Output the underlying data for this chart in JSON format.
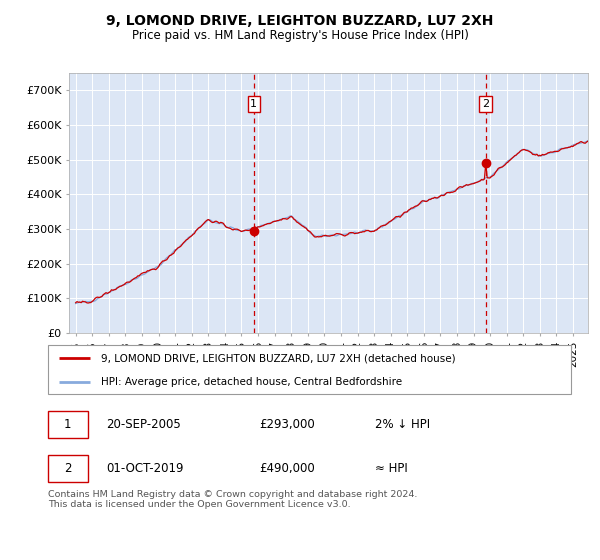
{
  "title": "9, LOMOND DRIVE, LEIGHTON BUZZARD, LU7 2XH",
  "subtitle": "Price paid vs. HM Land Registry's House Price Index (HPI)",
  "background_color": "#ffffff",
  "plot_bg_color": "#dce6f5",
  "line1_color": "#cc0000",
  "line2_color": "#88aadd",
  "marker_color": "#cc0000",
  "purchase1_date_num": 2005.72,
  "purchase1_price": 293000,
  "purchase2_date_num": 2019.75,
  "purchase2_price": 490000,
  "ylim": [
    0,
    750000
  ],
  "yticks": [
    0,
    100000,
    200000,
    300000,
    400000,
    500000,
    600000,
    700000
  ],
  "ytick_labels": [
    "£0",
    "£100K",
    "£200K",
    "£300K",
    "£400K",
    "£500K",
    "£600K",
    "£700K"
  ],
  "legend1_label": "9, LOMOND DRIVE, LEIGHTON BUZZARD, LU7 2XH (detached house)",
  "legend2_label": "HPI: Average price, detached house, Central Bedfordshire",
  "annotation1_label": "1",
  "annotation1_date": "20-SEP-2005",
  "annotation1_price": "£293,000",
  "annotation1_hpi": "2% ↓ HPI",
  "annotation2_label": "2",
  "annotation2_date": "01-OCT-2019",
  "annotation2_price": "£490,000",
  "annotation2_hpi": "≈ HPI",
  "footer": "Contains HM Land Registry data © Crown copyright and database right 2024.\nThis data is licensed under the Open Government Licence v3.0."
}
